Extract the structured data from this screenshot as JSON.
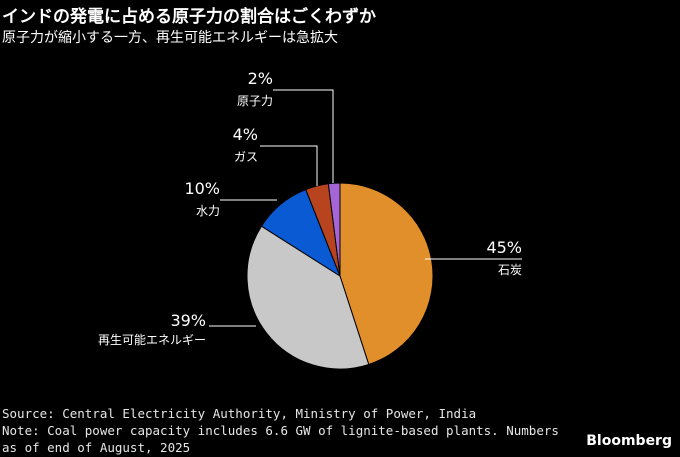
{
  "header": {
    "title": "インドの発電に占める原子力の割合はごくわずか",
    "subtitle": "原子力が縮小する一方、再生可能エネルギーは急拡大"
  },
  "chart_data": {
    "type": "pie",
    "title": "インドの発電に占める原子力の割合はごくわずか",
    "subtitle": "原子力が縮小する一方、再生可能エネルギーは急拡大",
    "slices": [
      {
        "label": "石炭",
        "value": 45,
        "value_label": "45%",
        "color": "#e18f2a"
      },
      {
        "label": "再生可能エネルギー",
        "value": 39,
        "value_label": "39%",
        "color": "#c8c8c8"
      },
      {
        "label": "水力",
        "value": 10,
        "value_label": "10%",
        "color": "#0a5bd3"
      },
      {
        "label": "ガス",
        "value": 4,
        "value_label": "4%",
        "color": "#b8431f"
      },
      {
        "label": "原子力",
        "value": 2,
        "value_label": "2%",
        "color": "#a466d6"
      }
    ]
  },
  "footer": {
    "source": "Source: Central Electricity Authority, Ministry of Power, India",
    "note_line1": "Note: Coal power capacity includes 6.6 GW of lignite-based plants. Numbers",
    "note_line2": "as of end of August, 2025",
    "brand": "Bloomberg"
  }
}
